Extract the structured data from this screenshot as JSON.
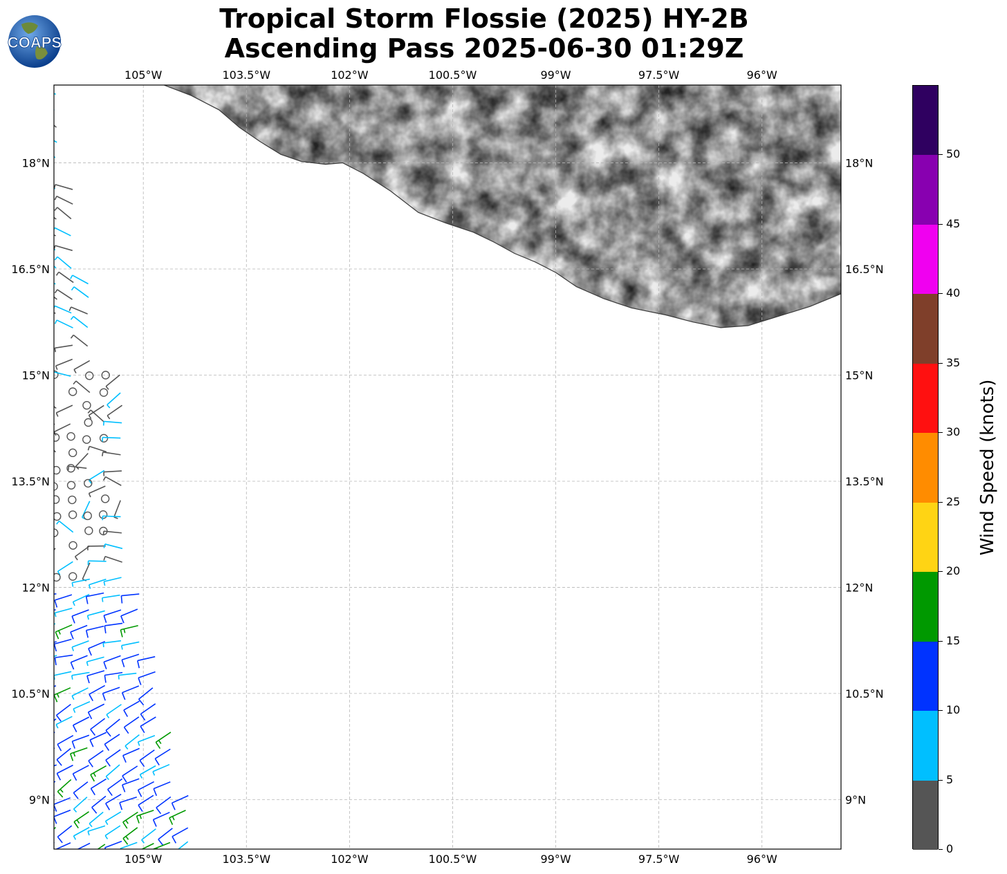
{
  "title": {
    "line1": "Tropical Storm Flossie (2025) HY-2B",
    "line2": "Ascending Pass 2025-06-30 01:29Z"
  },
  "logo": {
    "text": "COAPS",
    "icon": "globe-icon"
  },
  "map": {
    "lon_range": [
      -106.3,
      -94.85
    ],
    "lat_range": [
      8.3,
      19.1
    ],
    "lon_ticks": [
      {
        "value": -105.0,
        "label": "105°W"
      },
      {
        "value": -103.5,
        "label": "103.5°W"
      },
      {
        "value": -102.0,
        "label": "102°W"
      },
      {
        "value": -100.5,
        "label": "100.5°W"
      },
      {
        "value": -99.0,
        "label": "99°W"
      },
      {
        "value": -97.5,
        "label": "97.5°W"
      },
      {
        "value": -96.0,
        "label": "96°W"
      }
    ],
    "lat_ticks": [
      {
        "value": 18.0,
        "label": "18°N"
      },
      {
        "value": 16.5,
        "label": "16.5°N"
      },
      {
        "value": 15.0,
        "label": "15°N"
      },
      {
        "value": 13.5,
        "label": "13.5°N"
      },
      {
        "value": 12.0,
        "label": "12°N"
      },
      {
        "value": 10.5,
        "label": "10.5°N"
      },
      {
        "value": 9.0,
        "label": "9°N"
      }
    ],
    "grid": "dashed",
    "land_shading": "grayscale-terrain",
    "coastline": [
      [
        -104.7,
        19.1
      ],
      [
        -104.3,
        18.95
      ],
      [
        -103.9,
        18.75
      ],
      [
        -103.6,
        18.5
      ],
      [
        -103.3,
        18.3
      ],
      [
        -103.0,
        18.12
      ],
      [
        -102.7,
        18.02
      ],
      [
        -102.35,
        17.98
      ],
      [
        -102.1,
        18.0
      ],
      [
        -101.8,
        17.85
      ],
      [
        -101.4,
        17.6
      ],
      [
        -101.0,
        17.3
      ],
      [
        -100.6,
        17.15
      ],
      [
        -100.2,
        17.02
      ],
      [
        -99.9,
        16.88
      ],
      [
        -99.6,
        16.72
      ],
      [
        -99.3,
        16.6
      ],
      [
        -99.0,
        16.45
      ],
      [
        -98.7,
        16.25
      ],
      [
        -98.3,
        16.08
      ],
      [
        -97.9,
        15.95
      ],
      [
        -97.4,
        15.85
      ],
      [
        -97.0,
        15.75
      ],
      [
        -96.6,
        15.67
      ],
      [
        -96.2,
        15.7
      ],
      [
        -95.7,
        15.85
      ],
      [
        -95.3,
        15.97
      ],
      [
        -94.85,
        16.15
      ]
    ]
  },
  "colorbar": {
    "title": "Wind Speed (knots)",
    "ticks": [
      "0",
      "5",
      "10",
      "15",
      "20",
      "25",
      "30",
      "35",
      "40",
      "45",
      "50"
    ],
    "colors": [
      "#555555",
      "#00bfff",
      "#0033ff",
      "#009900",
      "#ffd414",
      "#ff8c00",
      "#ff1010",
      "#7f3f2a",
      "#f000f0",
      "#8800b0",
      "#2f0060"
    ],
    "bounds": [
      0,
      5,
      10,
      15,
      20,
      25,
      30,
      35,
      40,
      45,
      50,
      55
    ]
  },
  "chart_data": {
    "type": "map",
    "description_units": "knots",
    "wind_barbs": [
      {
        "region": "north-edge",
        "lat_range": [
          16.0,
          19.0
        ],
        "speed_kt": [
          5,
          10
        ],
        "dir_deg": 300
      },
      {
        "region": "storm-center",
        "lat_range": [
          12.3,
          15.0
        ],
        "speed_kt": [
          0,
          5
        ],
        "calm": true
      },
      {
        "region": "south",
        "lat_range": [
          8.3,
          12.0
        ],
        "speed_kt": [
          5,
          20
        ],
        "dir_deg": 250
      }
    ]
  }
}
